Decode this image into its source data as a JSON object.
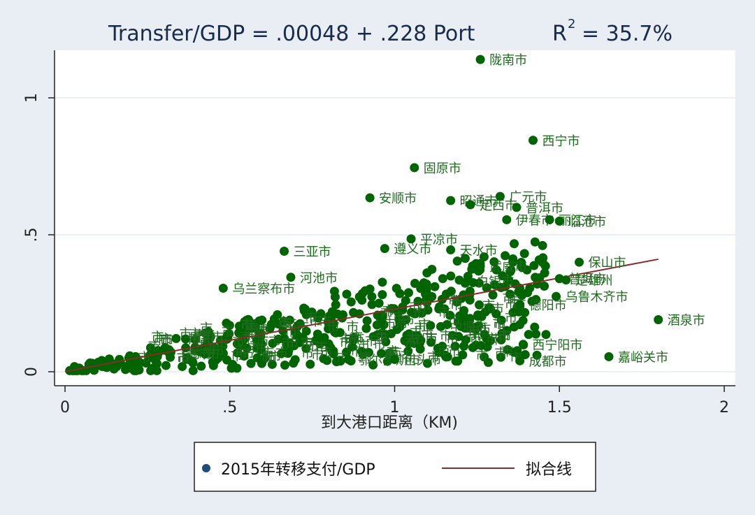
{
  "chart_data": {
    "type": "scatter",
    "title": {
      "main": "Transfer/GDP = .00048 + .228 Port",
      "r_label": "R",
      "r_sup": "2",
      "r_value": "= 35.7%"
    },
    "xlabel": "到大港口距离（KM)",
    "ylabel": "",
    "xlim": [
      0,
      2
    ],
    "ylim": [
      0,
      1.15
    ],
    "x_ticks": [
      {
        "value": 0,
        "label": "0"
      },
      {
        "value": 0.5,
        "label": ".5"
      },
      {
        "value": 1,
        "label": "1"
      },
      {
        "value": 1.5,
        "label": "1.5"
      },
      {
        "value": 2,
        "label": "2"
      }
    ],
    "y_ticks": [
      {
        "value": 0,
        "label": "0"
      },
      {
        "value": 0.5,
        "label": ".5"
      },
      {
        "value": 1,
        "label": "1"
      }
    ],
    "grid": true,
    "colors": {
      "points": "#006400",
      "labels": "#1e6b1e",
      "fit_line": "#8b2a2a",
      "legend_marker": "#1f4e79",
      "plot_bg": "#ffffff",
      "page_bg": "#e8eef3"
    },
    "fit": {
      "intercept": 0.00048,
      "slope": 0.228,
      "x_range": [
        0,
        1.8
      ]
    },
    "series": [
      {
        "name": "2015年转移支付/GDP",
        "labeled_points": [
          {
            "x": 1.26,
            "y": 1.14,
            "label": "陇南市"
          },
          {
            "x": 1.42,
            "y": 0.845,
            "label": "西宁市"
          },
          {
            "x": 1.06,
            "y": 0.745,
            "label": "固原市"
          },
          {
            "x": 0.925,
            "y": 0.635,
            "label": "安顺市"
          },
          {
            "x": 1.32,
            "y": 0.64,
            "label": "广元市"
          },
          {
            "x": 1.17,
            "y": 0.625,
            "label": "昭通市"
          },
          {
            "x": 1.23,
            "y": 0.61,
            "label": "定西市"
          },
          {
            "x": 1.37,
            "y": 0.6,
            "label": "普洱市"
          },
          {
            "x": 1.34,
            "y": 0.555,
            "label": "伊春市"
          },
          {
            "x": 1.47,
            "y": 0.555,
            "label": "丽江市"
          },
          {
            "x": 1.5,
            "y": 0.55,
            "label": "临沧市"
          },
          {
            "x": 1.05,
            "y": 0.485,
            "label": "平凉市"
          },
          {
            "x": 0.97,
            "y": 0.45,
            "label": "遵义市"
          },
          {
            "x": 1.17,
            "y": 0.445,
            "label": "天水市"
          },
          {
            "x": 0.665,
            "y": 0.44,
            "label": "三亚市"
          },
          {
            "x": 1.56,
            "y": 0.4,
            "label": "保山市"
          },
          {
            "x": 1.26,
            "y": 0.385,
            "label": "武威市"
          },
          {
            "x": 0.685,
            "y": 0.345,
            "label": "河池市"
          },
          {
            "x": 1.5,
            "y": 0.34,
            "label": "普洱市"
          },
          {
            "x": 1.52,
            "y": 0.335,
            "label": "楚雄州"
          },
          {
            "x": 0.48,
            "y": 0.305,
            "label": "乌兰察布市"
          },
          {
            "x": 1.22,
            "y": 0.33,
            "label": "白银市"
          },
          {
            "x": 1.49,
            "y": 0.275,
            "label": "乌鲁木齐市"
          },
          {
            "x": 1.8,
            "y": 0.19,
            "label": "酒泉市"
          },
          {
            "x": 1.38,
            "y": 0.245,
            "label": "德阳市"
          },
          {
            "x": 1.14,
            "y": 0.165,
            "label": "中堰市"
          },
          {
            "x": 1.39,
            "y": 0.1,
            "label": "西宁阳市"
          },
          {
            "x": 1.65,
            "y": 0.055,
            "label": "嘉峪关市"
          },
          {
            "x": 1.38,
            "y": 0.04,
            "label": "成都市"
          },
          {
            "x": 0.86,
            "y": 0.045,
            "label": "鄂尔多斯市"
          },
          {
            "x": 1.0,
            "y": 0.045,
            "label": "包头市"
          }
        ]
      },
      {
        "name": "拟合线"
      }
    ],
    "legend": {
      "position": "bottom-center",
      "items": [
        {
          "label": "2015年转移支付/GDP",
          "type": "marker"
        },
        {
          "label": "拟合线",
          "type": "line"
        }
      ]
    }
  }
}
